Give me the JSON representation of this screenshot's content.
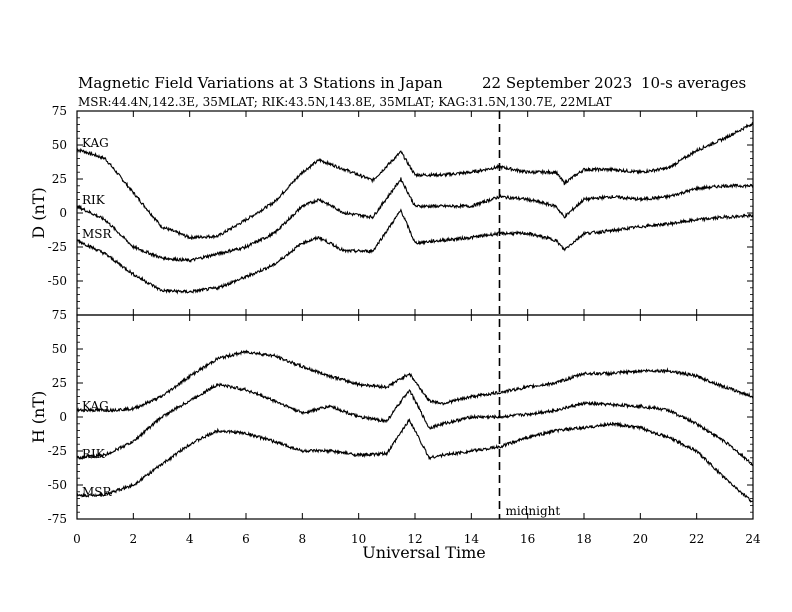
{
  "chart_data": {
    "type": "line",
    "title": "Magnetic Field Variations at 3 Stations in Japan",
    "date": "22 September 2023",
    "averaging": "10-s averages",
    "stations": "MSR:44.4N,142.3E, 35MLAT;  RIK:43.5N,143.8E, 35MLAT;  KAG:31.5N,130.7E, 22MLAT",
    "xlabel": "Universal Time",
    "xlim": [
      0,
      24
    ],
    "xticks": [
      "0",
      "2",
      "4",
      "6",
      "8",
      "10",
      "12",
      "14",
      "16",
      "18",
      "20",
      "22",
      "24"
    ],
    "midnight": {
      "x": 15,
      "label": "midnight"
    },
    "panels": [
      {
        "id": "D",
        "ylabel": "D (nT)",
        "ylim": [
          -75,
          75
        ],
        "yticks": [
          "75",
          "50",
          "25",
          "0",
          "-25",
          "-50",
          "-75"
        ],
        "series": [
          {
            "name": "KAG",
            "x": [
              0,
              1,
              2,
              3,
              4,
              5,
              6,
              7,
              8,
              8.6,
              9.5,
              10.5,
              11.5,
              12,
              13,
              14,
              15,
              16,
              17,
              17.3,
              18,
              19,
              20,
              21,
              22,
              23,
              24
            ],
            "y": [
              47,
              40,
              15,
              -10,
              -18,
              -17,
              -5,
              8,
              30,
              39,
              32,
              24,
              45,
              28,
              28,
              30,
              34,
              30,
              30,
              22,
              32,
              32,
              30,
              33,
              46,
              55,
              66
            ]
          },
          {
            "name": "RIK",
            "x": [
              0,
              1,
              2,
              3,
              4,
              5,
              6,
              7,
              8,
              8.6,
              9.5,
              10.5,
              11.5,
              12,
              13,
              14,
              15,
              16,
              17,
              17.3,
              18,
              19,
              20,
              21,
              22,
              23,
              24
            ],
            "y": [
              5,
              -5,
              -25,
              -33,
              -35,
              -30,
              -25,
              -15,
              5,
              10,
              0,
              -3,
              25,
              5,
              5,
              5,
              12,
              10,
              5,
              -3,
              10,
              12,
              10,
              12,
              18,
              20,
              20
            ]
          },
          {
            "name": "MSR",
            "x": [
              0,
              1,
              2,
              3,
              4,
              5,
              6,
              7,
              8,
              8.6,
              9.5,
              10.5,
              11.5,
              12,
              13,
              14,
              15,
              16,
              17,
              17.3,
              18,
              19,
              20,
              21,
              22,
              23,
              24
            ],
            "y": [
              -20,
              -30,
              -45,
              -57,
              -58,
              -55,
              -47,
              -38,
              -22,
              -18,
              -28,
              -28,
              2,
              -22,
              -20,
              -18,
              -15,
              -15,
              -20,
              -27,
              -15,
              -13,
              -10,
              -8,
              -5,
              -3,
              -2
            ]
          }
        ]
      },
      {
        "id": "H",
        "ylabel": "H (nT)",
        "ylim": [
          -75,
          75
        ],
        "yticks": [
          "75",
          "50",
          "25",
          "0",
          "-25",
          "-50",
          "-75"
        ],
        "series": [
          {
            "name": "KAG",
            "x": [
              0,
              1,
              2,
              3,
              4,
              5,
              6,
              7,
              8,
              9,
              10,
              11,
              11.8,
              12.5,
              13,
              14,
              15,
              16,
              17,
              18,
              19,
              20,
              21,
              22,
              23,
              24
            ],
            "y": [
              5,
              5,
              6,
              15,
              30,
              43,
              48,
              45,
              37,
              30,
              24,
              22,
              32,
              12,
              10,
              15,
              18,
              22,
              25,
              32,
              32,
              34,
              34,
              30,
              22,
              15
            ]
          },
          {
            "name": "RIK",
            "x": [
              0,
              1,
              2,
              3,
              4,
              5,
              6,
              7,
              8,
              9,
              10,
              11,
              11.8,
              12.5,
              13,
              14,
              15,
              16,
              17,
              18,
              19,
              20,
              21,
              22,
              23,
              24
            ],
            "y": [
              -30,
              -28,
              -18,
              0,
              12,
              24,
              20,
              12,
              3,
              8,
              0,
              -3,
              20,
              -8,
              -5,
              0,
              0,
              2,
              5,
              10,
              9,
              8,
              5,
              -5,
              -18,
              -35
            ]
          },
          {
            "name": "MSR",
            "x": [
              0,
              1,
              2,
              3,
              4,
              5,
              6,
              7,
              8,
              9,
              10,
              11,
              11.8,
              12.5,
              13,
              14,
              15,
              16,
              17,
              18,
              19,
              20,
              21,
              22,
              23,
              24
            ],
            "y": [
              -58,
              -57,
              -50,
              -35,
              -20,
              -10,
              -12,
              -18,
              -25,
              -25,
              -28,
              -27,
              -2,
              -30,
              -28,
              -25,
              -22,
              -15,
              -10,
              -8,
              -5,
              -8,
              -15,
              -25,
              -45,
              -63
            ]
          }
        ]
      }
    ]
  }
}
